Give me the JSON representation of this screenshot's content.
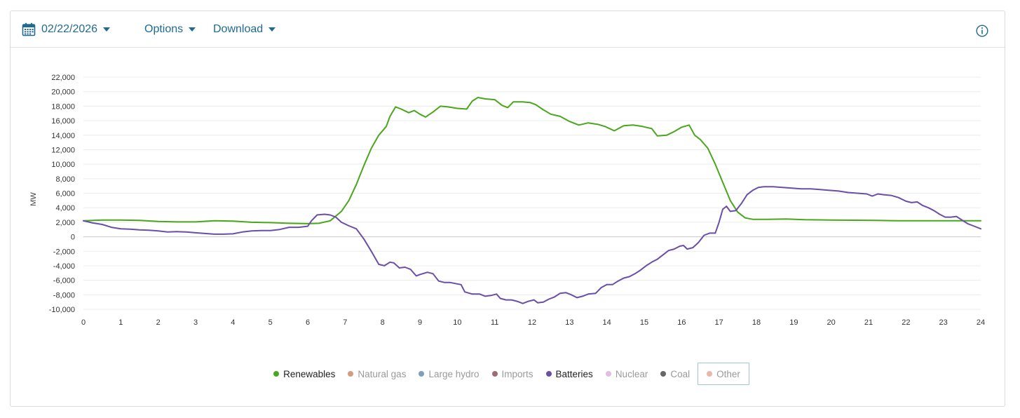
{
  "toolbar": {
    "date": "02/22/2026",
    "options_label": "Options",
    "download_label": "Download"
  },
  "chart_data": {
    "type": "line",
    "title": "",
    "xlabel": "",
    "ylabel": "MW",
    "xlim": [
      0,
      24
    ],
    "ylim": [
      -10000,
      22000
    ],
    "x_ticks": [
      "0",
      "1",
      "2",
      "3",
      "4",
      "5",
      "6",
      "7",
      "8",
      "9",
      "10",
      "11",
      "12",
      "13",
      "14",
      "15",
      "16",
      "17",
      "18",
      "19",
      "20",
      "21",
      "22",
      "23",
      "24"
    ],
    "y_ticks": [
      "22,000",
      "20,000",
      "18,000",
      "16,000",
      "14,000",
      "12,000",
      "10,000",
      "8,000",
      "6,000",
      "4,000",
      "2,000",
      "0",
      "-2,000",
      "-4,000",
      "-6,000",
      "-8,000",
      "-10,000"
    ],
    "y_tick_values": [
      22000,
      20000,
      18000,
      16000,
      14000,
      12000,
      10000,
      8000,
      6000,
      4000,
      2000,
      0,
      -2000,
      -4000,
      -6000,
      -8000,
      -10000
    ],
    "grid": true,
    "series": [
      {
        "name": "Renewables",
        "color": "#4aa61c",
        "points": [
          [
            0,
            2200
          ],
          [
            0.5,
            2300
          ],
          [
            1,
            2300
          ],
          [
            1.5,
            2250
          ],
          [
            2,
            2100
          ],
          [
            2.5,
            2050
          ],
          [
            3,
            2050
          ],
          [
            3.5,
            2200
          ],
          [
            4,
            2150
          ],
          [
            4.5,
            2000
          ],
          [
            5,
            1950
          ],
          [
            5.5,
            1850
          ],
          [
            6,
            1800
          ],
          [
            6.3,
            1850
          ],
          [
            6.6,
            2200
          ],
          [
            6.9,
            3500
          ],
          [
            7.1,
            5000
          ],
          [
            7.3,
            7200
          ],
          [
            7.5,
            9800
          ],
          [
            7.7,
            12200
          ],
          [
            7.9,
            14000
          ],
          [
            8.1,
            15200
          ],
          [
            8.2,
            16600
          ],
          [
            8.35,
            17900
          ],
          [
            8.5,
            17600
          ],
          [
            8.7,
            17100
          ],
          [
            8.85,
            17400
          ],
          [
            9,
            16900
          ],
          [
            9.15,
            16500
          ],
          [
            9.35,
            17200
          ],
          [
            9.55,
            18000
          ],
          [
            9.75,
            17900
          ],
          [
            10,
            17700
          ],
          [
            10.25,
            17600
          ],
          [
            10.4,
            18700
          ],
          [
            10.55,
            19200
          ],
          [
            10.75,
            19000
          ],
          [
            11,
            18900
          ],
          [
            11.2,
            18100
          ],
          [
            11.35,
            17800
          ],
          [
            11.5,
            18600
          ],
          [
            11.75,
            18600
          ],
          [
            11.95,
            18500
          ],
          [
            12.1,
            18200
          ],
          [
            12.3,
            17500
          ],
          [
            12.5,
            16900
          ],
          [
            12.75,
            16600
          ],
          [
            13,
            15900
          ],
          [
            13.25,
            15400
          ],
          [
            13.5,
            15700
          ],
          [
            13.75,
            15500
          ],
          [
            13.95,
            15200
          ],
          [
            14.2,
            14600
          ],
          [
            14.45,
            15300
          ],
          [
            14.7,
            15400
          ],
          [
            14.95,
            15200
          ],
          [
            15.2,
            14900
          ],
          [
            15.35,
            13900
          ],
          [
            15.6,
            14000
          ],
          [
            15.8,
            14500
          ],
          [
            16,
            15100
          ],
          [
            16.2,
            15400
          ],
          [
            16.35,
            14000
          ],
          [
            16.5,
            13400
          ],
          [
            16.7,
            12200
          ],
          [
            16.9,
            10000
          ],
          [
            17.1,
            7500
          ],
          [
            17.3,
            5000
          ],
          [
            17.5,
            3400
          ],
          [
            17.7,
            2600
          ],
          [
            17.9,
            2400
          ],
          [
            18.3,
            2400
          ],
          [
            18.8,
            2450
          ],
          [
            19.3,
            2350
          ],
          [
            20,
            2300
          ],
          [
            20.6,
            2280
          ],
          [
            21.2,
            2250
          ],
          [
            21.8,
            2200
          ],
          [
            22.4,
            2200
          ],
          [
            23,
            2200
          ],
          [
            23.5,
            2200
          ],
          [
            24,
            2200
          ]
        ]
      },
      {
        "name": "Batteries",
        "color": "#6a4ea8",
        "points": [
          [
            0,
            2200
          ],
          [
            0.25,
            1900
          ],
          [
            0.5,
            1700
          ],
          [
            0.75,
            1300
          ],
          [
            1,
            1100
          ],
          [
            1.25,
            1050
          ],
          [
            1.5,
            950
          ],
          [
            1.75,
            900
          ],
          [
            2,
            800
          ],
          [
            2.25,
            650
          ],
          [
            2.5,
            700
          ],
          [
            2.75,
            650
          ],
          [
            3,
            550
          ],
          [
            3.25,
            450
          ],
          [
            3.5,
            350
          ],
          [
            3.75,
            350
          ],
          [
            4,
            400
          ],
          [
            4.25,
            650
          ],
          [
            4.5,
            800
          ],
          [
            4.75,
            850
          ],
          [
            5,
            850
          ],
          [
            5.25,
            1000
          ],
          [
            5.5,
            1300
          ],
          [
            5.75,
            1300
          ],
          [
            6,
            1450
          ],
          [
            6.1,
            2200
          ],
          [
            6.25,
            3000
          ],
          [
            6.45,
            3100
          ],
          [
            6.6,
            3000
          ],
          [
            6.75,
            2700
          ],
          [
            6.9,
            2000
          ],
          [
            7.1,
            1500
          ],
          [
            7.3,
            1100
          ],
          [
            7.5,
            -300
          ],
          [
            7.7,
            -2000
          ],
          [
            7.9,
            -3800
          ],
          [
            8.05,
            -4000
          ],
          [
            8.2,
            -3500
          ],
          [
            8.3,
            -3600
          ],
          [
            8.45,
            -4300
          ],
          [
            8.6,
            -4200
          ],
          [
            8.75,
            -4500
          ],
          [
            8.9,
            -5400
          ],
          [
            9,
            -5200
          ],
          [
            9.2,
            -4900
          ],
          [
            9.35,
            -5100
          ],
          [
            9.5,
            -6100
          ],
          [
            9.65,
            -6300
          ],
          [
            9.8,
            -6300
          ],
          [
            10,
            -6500
          ],
          [
            10.1,
            -6600
          ],
          [
            10.2,
            -7600
          ],
          [
            10.4,
            -7900
          ],
          [
            10.6,
            -7900
          ],
          [
            10.75,
            -8200
          ],
          [
            10.9,
            -8100
          ],
          [
            11.05,
            -7900
          ],
          [
            11.15,
            -8500
          ],
          [
            11.3,
            -8700
          ],
          [
            11.45,
            -8700
          ],
          [
            11.6,
            -8900
          ],
          [
            11.75,
            -9200
          ],
          [
            11.9,
            -8900
          ],
          [
            12.05,
            -8700
          ],
          [
            12.15,
            -9100
          ],
          [
            12.3,
            -9000
          ],
          [
            12.45,
            -8600
          ],
          [
            12.6,
            -8300
          ],
          [
            12.75,
            -7800
          ],
          [
            12.9,
            -7700
          ],
          [
            13.05,
            -8000
          ],
          [
            13.2,
            -8400
          ],
          [
            13.35,
            -8200
          ],
          [
            13.5,
            -7900
          ],
          [
            13.7,
            -7800
          ],
          [
            13.85,
            -7000
          ],
          [
            14,
            -6600
          ],
          [
            14.15,
            -6600
          ],
          [
            14.3,
            -6100
          ],
          [
            14.45,
            -5700
          ],
          [
            14.6,
            -5500
          ],
          [
            14.75,
            -5100
          ],
          [
            14.9,
            -4600
          ],
          [
            15.05,
            -4000
          ],
          [
            15.2,
            -3500
          ],
          [
            15.35,
            -3100
          ],
          [
            15.5,
            -2500
          ],
          [
            15.65,
            -1900
          ],
          [
            15.8,
            -1700
          ],
          [
            15.95,
            -1300
          ],
          [
            16.05,
            -1200
          ],
          [
            16.15,
            -1700
          ],
          [
            16.3,
            -1500
          ],
          [
            16.45,
            -800
          ],
          [
            16.6,
            200
          ],
          [
            16.75,
            500
          ],
          [
            16.9,
            500
          ],
          [
            17,
            2000
          ],
          [
            17.1,
            3800
          ],
          [
            17.2,
            4200
          ],
          [
            17.3,
            3500
          ],
          [
            17.45,
            3600
          ],
          [
            17.6,
            4600
          ],
          [
            17.75,
            5800
          ],
          [
            17.9,
            6400
          ],
          [
            18.05,
            6800
          ],
          [
            18.2,
            6900
          ],
          [
            18.45,
            6900
          ],
          [
            18.7,
            6800
          ],
          [
            18.95,
            6700
          ],
          [
            19.2,
            6600
          ],
          [
            19.45,
            6600
          ],
          [
            19.7,
            6500
          ],
          [
            19.95,
            6400
          ],
          [
            20.2,
            6300
          ],
          [
            20.45,
            6100
          ],
          [
            20.7,
            6000
          ],
          [
            20.95,
            5900
          ],
          [
            21.1,
            5600
          ],
          [
            21.25,
            5900
          ],
          [
            21.4,
            5800
          ],
          [
            21.6,
            5700
          ],
          [
            21.8,
            5400
          ],
          [
            22,
            4900
          ],
          [
            22.15,
            4700
          ],
          [
            22.3,
            4800
          ],
          [
            22.45,
            4300
          ],
          [
            22.6,
            4000
          ],
          [
            22.75,
            3600
          ],
          [
            22.9,
            3100
          ],
          [
            23.05,
            2700
          ],
          [
            23.2,
            2700
          ],
          [
            23.35,
            2800
          ],
          [
            23.5,
            2300
          ],
          [
            23.65,
            1800
          ],
          [
            23.8,
            1500
          ],
          [
            24,
            1100
          ]
        ]
      }
    ],
    "legend": [
      {
        "name": "Renewables",
        "color": "#4aa61c",
        "text_color": "#222222"
      },
      {
        "name": "Natural gas",
        "color": "#d59b80",
        "text_color": "#9a9a9a"
      },
      {
        "name": "Large hydro",
        "color": "#7f9fbd",
        "text_color": "#9a9a9a"
      },
      {
        "name": "Imports",
        "color": "#9c6b74",
        "text_color": "#9a9a9a"
      },
      {
        "name": "Batteries",
        "color": "#6a4ea8",
        "text_color": "#222222"
      },
      {
        "name": "Nuclear",
        "color": "#e0bfe0",
        "text_color": "#9a9a9a"
      },
      {
        "name": "Coal",
        "color": "#666666",
        "text_color": "#9a9a9a"
      },
      {
        "name": "Other",
        "color": "#e9b6ab",
        "text_color": "#9a9a9a"
      }
    ]
  }
}
